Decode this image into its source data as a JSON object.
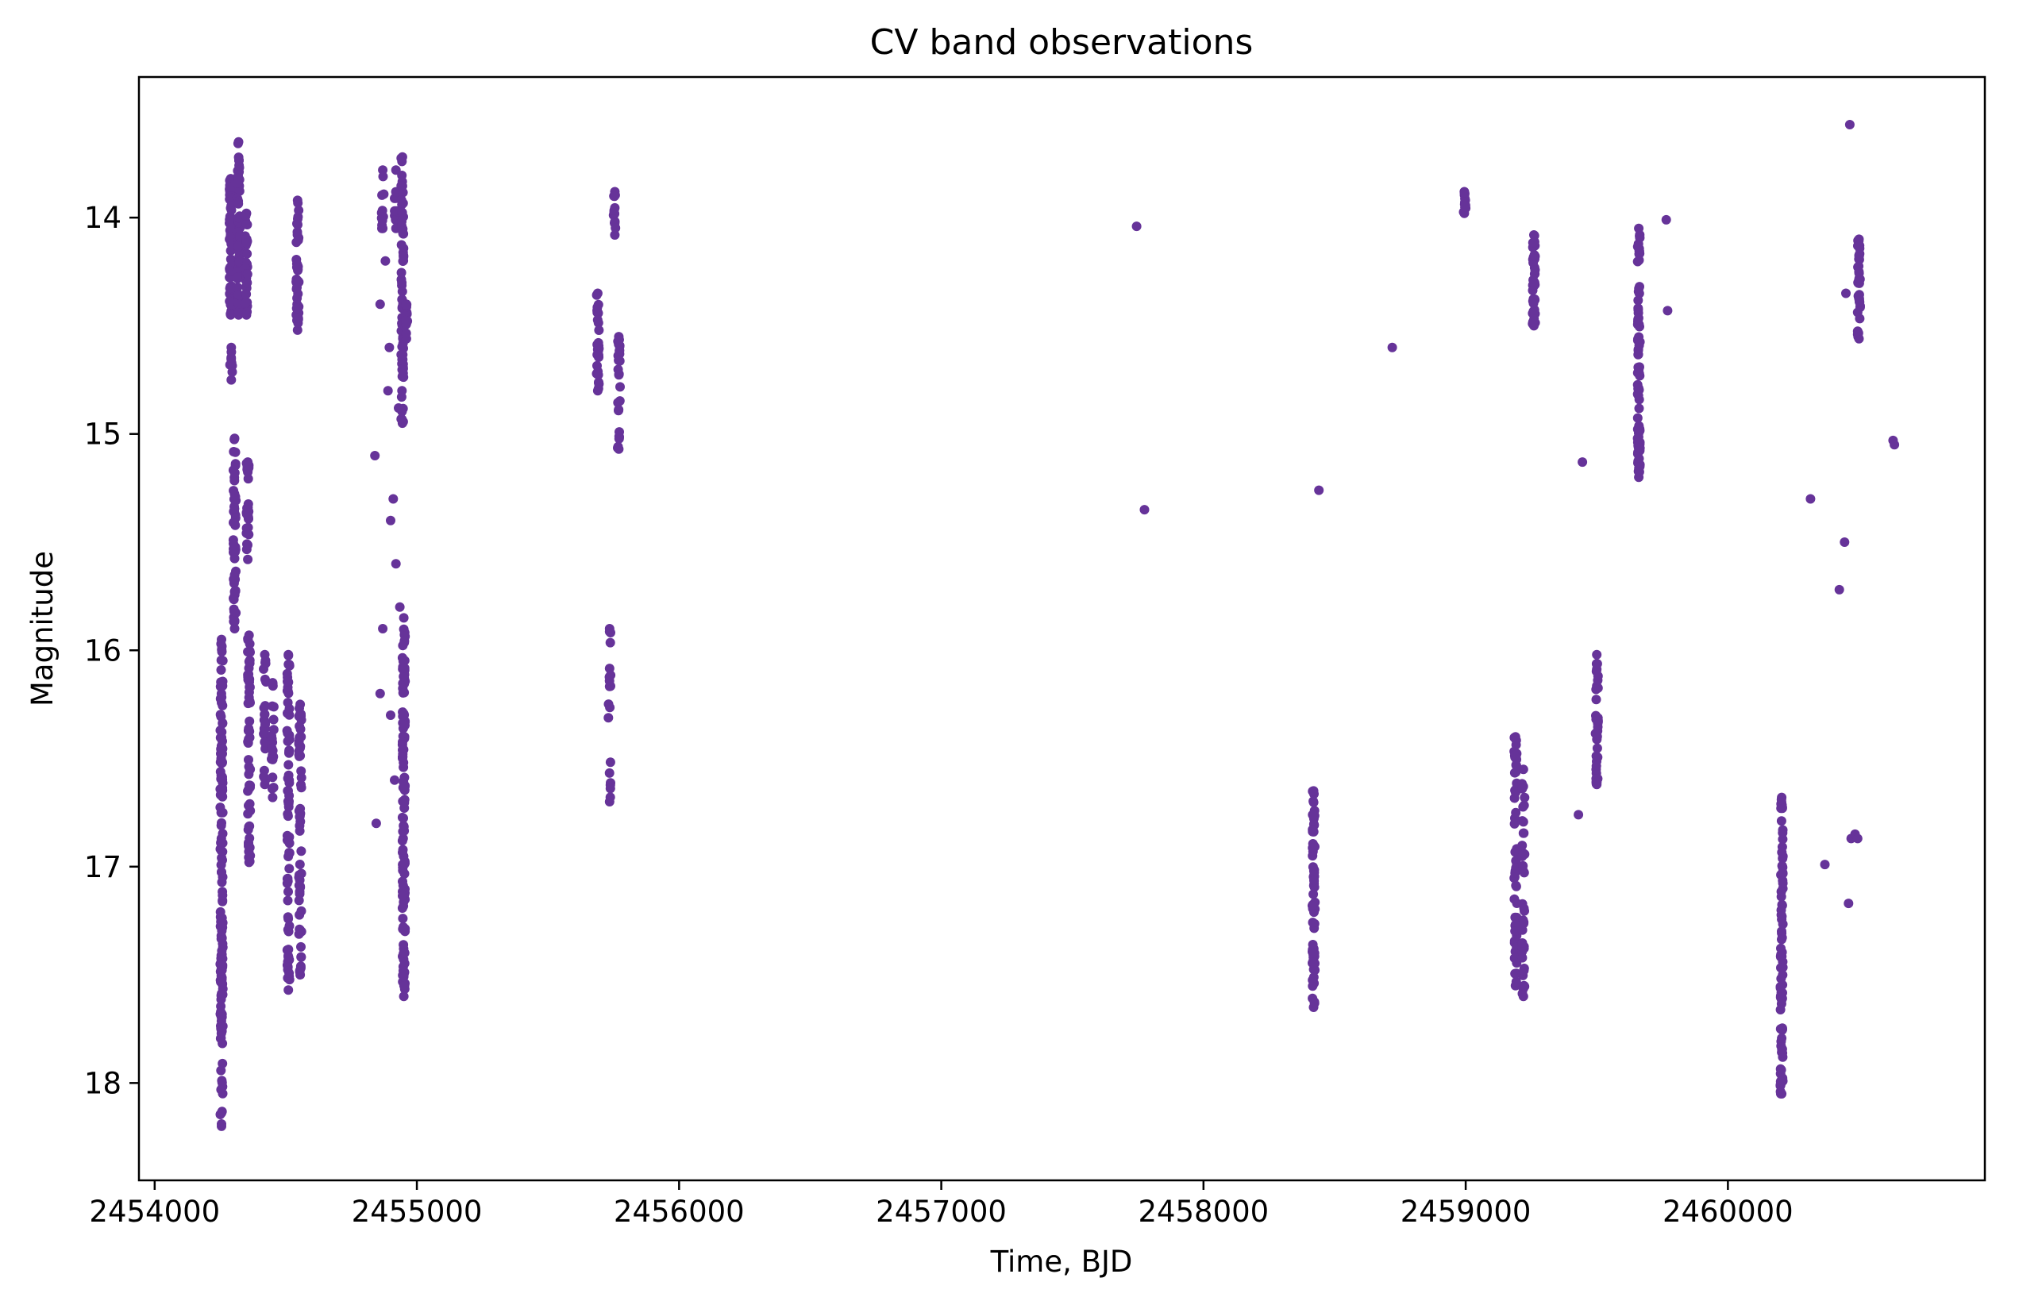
{
  "chart_data": {
    "type": "scatter",
    "title": "CV band observations",
    "xlabel": "Time, BJD",
    "ylabel": "Magnitude",
    "xlim": [
      2453940,
      2460980
    ],
    "ylim": [
      18.45,
      13.35
    ],
    "y_inverted": true,
    "grid": false,
    "legend": "none",
    "x_ticks": [
      2454000,
      2455000,
      2456000,
      2457000,
      2458000,
      2459000,
      2460000
    ],
    "x_tick_labels": [
      "2454000",
      "2455000",
      "2456000",
      "2457000",
      "2458000",
      "2459000",
      "2460000"
    ],
    "y_ticks": [
      14,
      15,
      16,
      17,
      18
    ],
    "y_tick_labels": [
      "14",
      "15",
      "16",
      "17",
      "18"
    ],
    "marker_color": "#663399",
    "series": [
      {
        "clusters": [
          {
            "x": 2454255,
            "y": [
              15.95,
              18.2
            ],
            "n": 150
          },
          {
            "x": 2454290,
            "y": [
              13.82,
              14.45
            ],
            "n": 60
          },
          {
            "x": 2454292,
            "y": [
              14.6,
              14.75
            ],
            "n": 10
          },
          {
            "x": 2454305,
            "y": [
              15.02,
              15.9
            ],
            "n": 55
          },
          {
            "x": 2454320,
            "y": [
              13.65,
              14.45
            ],
            "n": 70
          },
          {
            "x": 2454350,
            "y": [
              13.98,
              14.45
            ],
            "n": 35
          },
          {
            "x": 2454355,
            "y": [
              15.13,
              15.58
            ],
            "n": 30
          },
          {
            "x": 2454360,
            "y": [
              15.93,
              16.98
            ],
            "n": 60
          },
          {
            "x": 2454420,
            "y": [
              16.02,
              16.62
            ],
            "n": 30
          },
          {
            "x": 2454450,
            "y": [
              16.15,
              16.68
            ],
            "n": 20
          },
          {
            "x": 2454510,
            "y": [
              16.02,
              17.57
            ],
            "n": 80
          },
          {
            "x": 2454545,
            "y": [
              13.92,
              14.52
            ],
            "n": 40
          },
          {
            "x": 2454555,
            "y": [
              16.25,
              17.5
            ],
            "n": 60
          },
          {
            "x": 2454870,
            "y": [
              13.78,
              14.05
            ],
            "n": 12
          },
          {
            "x": 2454920,
            "y": [
              13.78,
              14.05
            ],
            "n": 12
          },
          {
            "x": 2454945,
            "y": [
              13.72,
              14.95
            ],
            "n": 70
          },
          {
            "x": 2454950,
            "y": [
              15.85,
              17.6
            ],
            "n": 120
          },
          {
            "x": 2454960,
            "y": [
              14.4,
              14.56
            ],
            "n": 15
          },
          {
            "x": 2455690,
            "y": [
              14.35,
              14.8
            ],
            "n": 30
          },
          {
            "x": 2455735,
            "y": [
              15.9,
              16.7
            ],
            "n": 20
          },
          {
            "x": 2455755,
            "y": [
              13.88,
              14.08
            ],
            "n": 15
          },
          {
            "x": 2455770,
            "y": [
              14.55,
              15.07
            ],
            "n": 30
          },
          {
            "x": 2458420,
            "y": [
              16.65,
              17.65
            ],
            "n": 70
          },
          {
            "x": 2458995,
            "y": [
              13.88,
              13.98
            ],
            "n": 15
          },
          {
            "x": 2459190,
            "y": [
              16.4,
              17.55
            ],
            "n": 55
          },
          {
            "x": 2459220,
            "y": [
              16.55,
              17.6
            ],
            "n": 40
          },
          {
            "x": 2459260,
            "y": [
              14.08,
              14.5
            ],
            "n": 40
          },
          {
            "x": 2459500,
            "y": [
              16.02,
              16.62
            ],
            "n": 40
          },
          {
            "x": 2459660,
            "y": [
              14.05,
              15.2
            ],
            "n": 80
          },
          {
            "x": 2460205,
            "y": [
              16.68,
              18.05
            ],
            "n": 90
          },
          {
            "x": 2460500,
            "y": [
              14.1,
              14.56
            ],
            "n": 40
          }
        ],
        "points": [
          {
            "x": 2454840,
            "y": 15.1
          },
          {
            "x": 2454845,
            "y": 16.8
          },
          {
            "x": 2454860,
            "y": 14.4
          },
          {
            "x": 2454860,
            "y": 16.2
          },
          {
            "x": 2454870,
            "y": 15.9
          },
          {
            "x": 2454880,
            "y": 14.2
          },
          {
            "x": 2454890,
            "y": 14.8
          },
          {
            "x": 2454895,
            "y": 14.6
          },
          {
            "x": 2454900,
            "y": 15.4
          },
          {
            "x": 2454910,
            "y": 15.3
          },
          {
            "x": 2454920,
            "y": 15.6
          },
          {
            "x": 2454900,
            "y": 16.3
          },
          {
            "x": 2454915,
            "y": 16.6
          },
          {
            "x": 2454930,
            "y": 14.88
          },
          {
            "x": 2454935,
            "y": 15.8
          },
          {
            "x": 2457745,
            "y": 14.04
          },
          {
            "x": 2457775,
            "y": 15.35
          },
          {
            "x": 2458440,
            "y": 15.26
          },
          {
            "x": 2458720,
            "y": 14.6
          },
          {
            "x": 2459430,
            "y": 16.76
          },
          {
            "x": 2459445,
            "y": 15.13
          },
          {
            "x": 2459765,
            "y": 14.01
          },
          {
            "x": 2459770,
            "y": 14.43
          },
          {
            "x": 2460315,
            "y": 15.3
          },
          {
            "x": 2460370,
            "y": 16.99
          },
          {
            "x": 2460425,
            "y": 15.72
          },
          {
            "x": 2460445,
            "y": 15.5
          },
          {
            "x": 2460450,
            "y": 14.35
          },
          {
            "x": 2460460,
            "y": 17.17
          },
          {
            "x": 2460465,
            "y": 13.57
          },
          {
            "x": 2460470,
            "y": 16.87
          },
          {
            "x": 2460485,
            "y": 16.85
          },
          {
            "x": 2460495,
            "y": 16.87
          },
          {
            "x": 2460630,
            "y": 15.03
          },
          {
            "x": 2460635,
            "y": 15.05
          }
        ]
      }
    ]
  }
}
